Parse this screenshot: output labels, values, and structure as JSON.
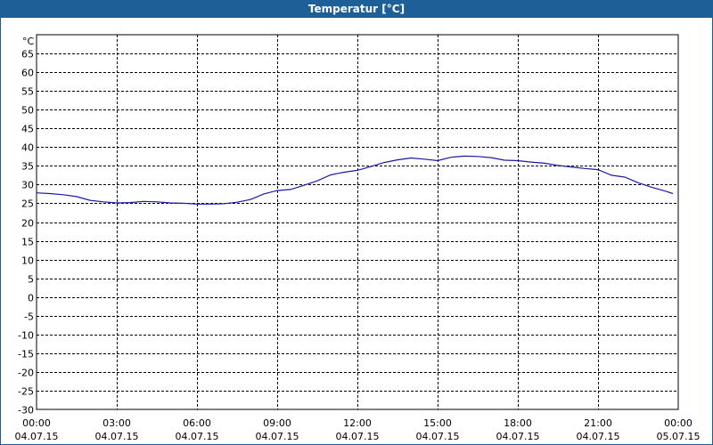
{
  "chart_data": {
    "type": "line",
    "title": "Temperatur [°C]",
    "ylabel": "°C",
    "xlabel": "",
    "ylim": [
      -30,
      70
    ],
    "y_ticks": [
      65,
      60,
      55,
      50,
      45,
      40,
      35,
      30,
      25,
      20,
      15,
      10,
      5,
      0,
      -5,
      -10,
      -15,
      -20,
      -25,
      -30
    ],
    "grid": true,
    "legend": "none",
    "line_color": "#1a1aa6",
    "x_ticks": [
      {
        "hours": 0,
        "time": "00:00",
        "date": "04.07.15"
      },
      {
        "hours": 3,
        "time": "03:00",
        "date": "04.07.15"
      },
      {
        "hours": 6,
        "time": "06:00",
        "date": "04.07.15"
      },
      {
        "hours": 9,
        "time": "09:00",
        "date": "04.07.15"
      },
      {
        "hours": 12,
        "time": "12:00",
        "date": "04.07.15"
      },
      {
        "hours": 15,
        "time": "15:00",
        "date": "04.07.15"
      },
      {
        "hours": 18,
        "time": "18:00",
        "date": "04.07.15"
      },
      {
        "hours": 21,
        "time": "21:00",
        "date": "04.07.15"
      },
      {
        "hours": 24,
        "time": "00:00",
        "date": "05.07.15"
      }
    ],
    "series": [
      {
        "x": [
          0,
          0.5,
          1,
          1.5,
          2,
          2.5,
          3,
          3.5,
          4,
          4.5,
          5,
          5.5,
          6,
          6.5,
          7,
          7.5,
          8,
          8.5,
          9,
          9.5,
          10,
          10.5,
          11,
          11.5,
          12,
          12.5,
          13,
          13.5,
          14,
          14.5,
          15,
          15.5,
          16,
          16.5,
          17,
          17.5,
          18,
          18.5,
          19,
          19.5,
          20,
          20.5,
          21,
          21.5,
          22,
          22.5,
          23,
          23.5,
          23.8
        ],
        "y": [
          27.8,
          27.6,
          27.3,
          26.8,
          25.8,
          25.4,
          25.1,
          25.2,
          25.5,
          25.4,
          25.1,
          25.0,
          24.8,
          24.8,
          24.9,
          25.3,
          26.0,
          27.5,
          28.4,
          28.7,
          29.8,
          31.0,
          32.6,
          33.3,
          33.8,
          34.8,
          35.9,
          36.6,
          37.1,
          36.8,
          36.4,
          37.3,
          37.6,
          37.5,
          37.2,
          36.5,
          36.4,
          36.0,
          35.7,
          35.1,
          34.7,
          34.3,
          34.0,
          32.5,
          32.0,
          30.5,
          29.3,
          28.3,
          27.6
        ]
      }
    ]
  }
}
